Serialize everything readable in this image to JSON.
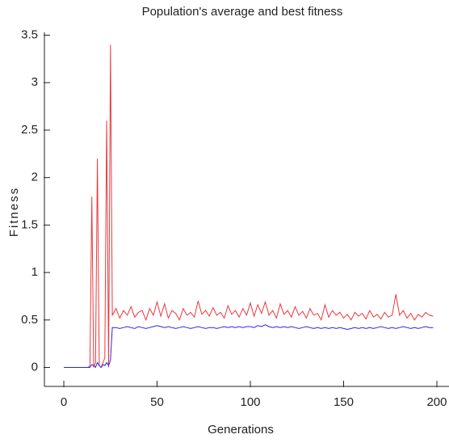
{
  "chart_data": {
    "type": "line",
    "title": "Population's average and best fitness",
    "xlabel": "Generations",
    "ylabel": "Fitness",
    "x": [
      0,
      5,
      10,
      13,
      14,
      15,
      16,
      17,
      18,
      19,
      20,
      21,
      22,
      23,
      24,
      25,
      26,
      28,
      30,
      32,
      34,
      36,
      38,
      40,
      42,
      44,
      46,
      48,
      50,
      52,
      54,
      56,
      58,
      60,
      62,
      64,
      66,
      68,
      70,
      72,
      74,
      76,
      78,
      80,
      82,
      84,
      86,
      88,
      90,
      92,
      94,
      96,
      98,
      100,
      102,
      104,
      106,
      108,
      110,
      112,
      114,
      116,
      118,
      120,
      122,
      124,
      126,
      128,
      130,
      132,
      134,
      136,
      138,
      140,
      142,
      144,
      146,
      148,
      150,
      152,
      154,
      156,
      158,
      160,
      162,
      164,
      166,
      168,
      170,
      172,
      174,
      176,
      178,
      180,
      182,
      184,
      186,
      188,
      190,
      192,
      194,
      196,
      198
    ],
    "series": [
      {
        "color": "#e8393c",
        "values": [
          0,
          0,
          0,
          0,
          0.02,
          1.8,
          0,
          0.05,
          2.2,
          0.02,
          0,
          0.05,
          0.1,
          2.6,
          0,
          3.4,
          0.55,
          0.62,
          0.52,
          0.6,
          0.55,
          0.64,
          0.53,
          0.58,
          0.6,
          0.5,
          0.62,
          0.55,
          0.69,
          0.54,
          0.67,
          0.52,
          0.6,
          0.57,
          0.5,
          0.62,
          0.55,
          0.58,
          0.53,
          0.7,
          0.56,
          0.6,
          0.54,
          0.63,
          0.55,
          0.58,
          0.52,
          0.65,
          0.56,
          0.6,
          0.53,
          0.62,
          0.55,
          0.68,
          0.54,
          0.66,
          0.57,
          0.69,
          0.55,
          0.6,
          0.52,
          0.67,
          0.56,
          0.6,
          0.53,
          0.64,
          0.55,
          0.59,
          0.52,
          0.62,
          0.55,
          0.57,
          0.5,
          0.66,
          0.53,
          0.6,
          0.55,
          0.58,
          0.52,
          0.56,
          0.5,
          0.58,
          0.54,
          0.57,
          0.51,
          0.6,
          0.53,
          0.56,
          0.51,
          0.58,
          0.53,
          0.55,
          0.77,
          0.55,
          0.6,
          0.52,
          0.57,
          0.5,
          0.56,
          0.53,
          0.58,
          0.55,
          0.54
        ]
      },
      {
        "color": "#2727e0",
        "values": [
          0,
          0,
          0,
          0,
          0,
          0.03,
          0.02,
          0,
          0.05,
          0.02,
          0,
          0.03,
          0.02,
          0.05,
          0.02,
          0.08,
          0.42,
          0.42,
          0.41,
          0.42,
          0.43,
          0.42,
          0.41,
          0.43,
          0.42,
          0.41,
          0.42,
          0.43,
          0.44,
          0.43,
          0.42,
          0.43,
          0.42,
          0.41,
          0.42,
          0.43,
          0.42,
          0.41,
          0.42,
          0.43,
          0.42,
          0.41,
          0.42,
          0.42,
          0.41,
          0.42,
          0.43,
          0.42,
          0.43,
          0.42,
          0.43,
          0.42,
          0.43,
          0.43,
          0.42,
          0.44,
          0.43,
          0.45,
          0.43,
          0.42,
          0.43,
          0.42,
          0.43,
          0.42,
          0.43,
          0.42,
          0.41,
          0.42,
          0.43,
          0.42,
          0.41,
          0.42,
          0.41,
          0.42,
          0.41,
          0.42,
          0.41,
          0.42,
          0.41,
          0.4,
          0.41,
          0.42,
          0.41,
          0.42,
          0.41,
          0.42,
          0.41,
          0.42,
          0.43,
          0.42,
          0.41,
          0.42,
          0.41,
          0.42,
          0.43,
          0.42,
          0.41,
          0.42,
          0.41,
          0.42,
          0.43,
          0.42,
          0.42
        ]
      }
    ],
    "xlim": [
      -10.4,
      206.5
    ],
    "xticks": [
      0,
      50,
      100,
      150,
      200
    ],
    "ylim": [
      -0.2,
      3.53
    ],
    "yticks": [
      0,
      0.5,
      1,
      1.5,
      2,
      2.5,
      3,
      3.5
    ]
  }
}
